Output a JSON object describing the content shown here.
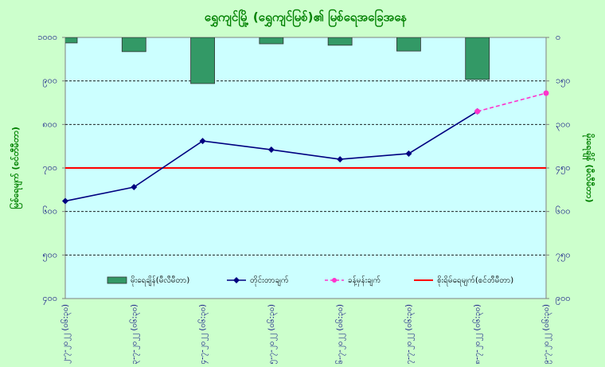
{
  "chart_data": {
    "type": "combo",
    "title": "ရွှေကျင်မြို့ (ရွှေကျင်မြစ်)၏ မြစ်ရေအခြေအနေ",
    "ylabel": "မြစ်ရေမျက် (စင်တီမီတာ)",
    "y2label": "မိုးရေချိန် (မီလီမီတာ)",
    "categories": [
      "၂၂-၇-၂၀၂၂ (၀၆:၃၀)",
      "၂၃-၇-၂၀၂၂ (၀၆:၃၀)",
      "၂၄-၇-၂၀၂၂ (၀၆:၃၀)",
      "၂၅-၇-၂၀၂၂ (၀၆:၃၀)",
      "၂၆-၇-၂၀၂၂ (၀၆:၃၀)",
      "၂၇-၇-၂၀၂၂ (၀၆:၃၀)",
      "၂၈-၇-၂၀၂၂ (၀၆:၃၀)",
      "၂၉-၇-၂၀၂၂ (၀၆:၃၀)"
    ],
    "series": [
      {
        "name": "မိုးရေချိန်(မီလီမီတာ)",
        "type": "bar",
        "axis": "y2",
        "color": "#339966",
        "values": [
          19,
          49,
          159,
          22,
          27,
          47,
          145,
          null
        ]
      },
      {
        "name": "တိုင်းတာချက်",
        "type": "line",
        "marker": "diamond",
        "color": "#000080",
        "values": [
          624,
          656,
          762,
          742,
          720,
          733,
          830,
          null
        ]
      },
      {
        "name": "ခန့်မှန်းချက်",
        "type": "line",
        "marker": "circle",
        "dashed": true,
        "color": "#ff33cc",
        "values": [
          null,
          null,
          null,
          null,
          null,
          null,
          830,
          872
        ]
      }
    ],
    "reference_line": {
      "name": "စိုးရိမ်ရေမျက်(စင်တီမီတာ)",
      "value": 700,
      "color": "#ff0000"
    },
    "ylim": [
      400,
      1000
    ],
    "yticks": [
      {
        "value": 400,
        "label": "၄၀၀"
      },
      {
        "value": 500,
        "label": "၅၀၀"
      },
      {
        "value": 600,
        "label": "၆၀၀"
      },
      {
        "value": 700,
        "label": "၇၀၀"
      },
      {
        "value": 800,
        "label": "၈၀၀"
      },
      {
        "value": 900,
        "label": "၉၀၀"
      },
      {
        "value": 1000,
        "label": "၁၀၀၀"
      }
    ],
    "y2lim": [
      0,
      900
    ],
    "y2_inverted": true,
    "y2ticks": [
      {
        "value": 0,
        "label": "၀"
      },
      {
        "value": 150,
        "label": "၁၅၀"
      },
      {
        "value": 300,
        "label": "၃၀၀"
      },
      {
        "value": 450,
        "label": "၄၅၀"
      },
      {
        "value": 600,
        "label": "၆၀၀"
      },
      {
        "value": 750,
        "label": "၇၅၀"
      },
      {
        "value": 900,
        "label": "၉၀၀"
      }
    ],
    "grid": true,
    "plot_background": "#ccffff"
  }
}
